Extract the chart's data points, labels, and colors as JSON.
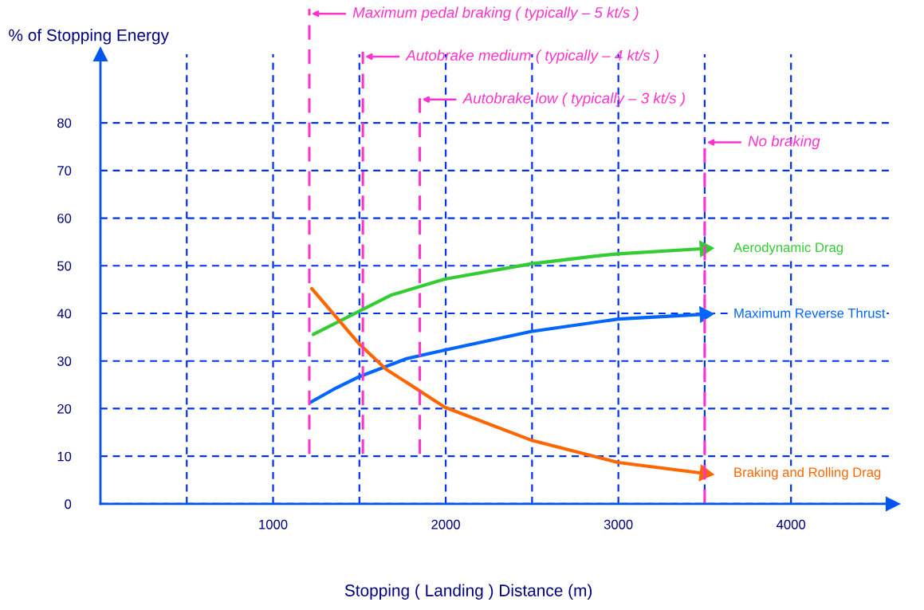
{
  "chart_data": {
    "type": "line",
    "xlabel": "Stopping ( Landing ) Distance (m)",
    "ylabel": "% of Stopping Energy",
    "xlim": [
      0,
      4590
    ],
    "ylim": [
      0,
      94.4
    ],
    "xticks": [
      {
        "value": 500,
        "label": null
      },
      1000,
      {
        "value": 1500,
        "label": null
      },
      2000,
      {
        "value": 2500,
        "label": null
      },
      3000,
      {
        "value": 3500,
        "label": null
      },
      4000
    ],
    "yticks": [
      0,
      10,
      20,
      30,
      40,
      50,
      60,
      70,
      80
    ],
    "grid": true,
    "legend": "right",
    "line_style": "solid",
    "marker": "none",
    "series": [
      {
        "name": "Aerodynamic Drag",
        "color": "#33cc33",
        "x": [
          1233,
          1681,
          1995,
          2494,
          2859,
          2998,
          3500
        ],
        "values": [
          35.6,
          43.8,
          47.2,
          50.4,
          52.0,
          52.5,
          53.6
        ]
      },
      {
        "name": "Maximum Reverse Thrust",
        "color": "#0066ff",
        "x": [
          1215,
          1363,
          1492,
          1774,
          1995,
          2494,
          2998,
          3500
        ],
        "values": [
          21.3,
          24.3,
          26.6,
          30.5,
          32.3,
          36.2,
          38.8,
          39.8
        ]
      },
      {
        "name": "Braking and Rolling Drag",
        "color": "#ff6600",
        "x": [
          1224,
          1501,
          1654,
          1995,
          2494,
          2998,
          3500
        ],
        "values": [
          45.2,
          33.5,
          28.3,
          20.3,
          13.4,
          8.7,
          6.4
        ]
      }
    ],
    "ref_lines": [
      {
        "axis": "x",
        "value": 1210,
        "label": "Maximum pedal braking ( typically – 5 kt/s )",
        "color": "#ff33cc",
        "line_style": "dashed"
      },
      {
        "axis": "x",
        "value": 1520,
        "label": "Autobrake medium ( typically – 4 kt/s )",
        "color": "#ff33cc",
        "line_style": "dashed"
      },
      {
        "axis": "x",
        "value": 1850,
        "label": "Autobrake low ( typically – 3 kt/s )",
        "color": "#ff33cc",
        "line_style": "dashed"
      },
      {
        "axis": "x",
        "value": 3500,
        "label": "No braking",
        "color": "#ff33cc",
        "line_style": "dashed"
      }
    ]
  }
}
